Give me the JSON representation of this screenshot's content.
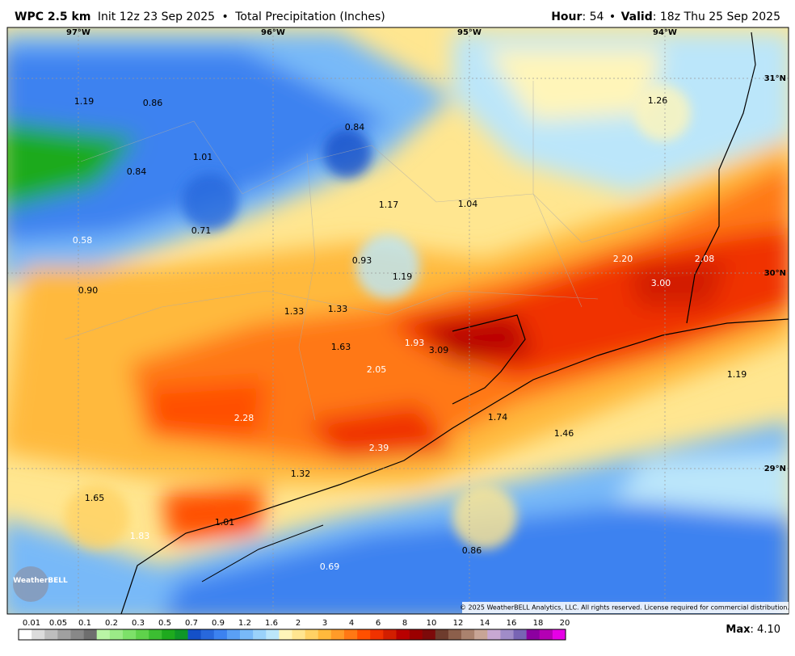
{
  "header": {
    "model": "WPC 2.5 km",
    "init": "Init 12z 23 Sep 2025",
    "separator": "•",
    "product": "Total Precipitation (Inches)",
    "hour_label": "Hour",
    "hour": ": 54",
    "valid_label": "Valid",
    "valid": ": 18z Thu 25 Sep 2025"
  },
  "map": {
    "longitudes": [
      "97°W",
      "96°W",
      "95°W",
      "94°W"
    ],
    "latitudes": [
      "31°N",
      "30°N",
      "29°N"
    ],
    "point_values": [
      "1.19",
      "0.86",
      "0.84",
      "1.26",
      "1.01",
      "0.84",
      "1.17",
      "1.04",
      "0.71",
      "0.58",
      "0.93",
      "2.20",
      "2.08",
      "3.00",
      "1.19",
      "0.90",
      "1.33",
      "1.33",
      "1.93",
      "3.09",
      "1.63",
      "2.05",
      "1.19",
      "2.28",
      "1.74",
      "1.46",
      "2.39",
      "1.32",
      "1.65",
      "1.01",
      "1.83",
      "0.86",
      "0.69"
    ],
    "logo": "WeatherBELL",
    "copyright": "© 2025 WeatherBELL Analytics, LLC. All rights reserved. License required for commercial distribution."
  },
  "legend": {
    "levels": [
      "0.01",
      "0.05",
      "0.1",
      "0.2",
      "0.3",
      "0.5",
      "0.7",
      "0.9",
      "1.2",
      "1.6",
      "2",
      "3",
      "4",
      "6",
      "8",
      "10",
      "12",
      "14",
      "16",
      "18",
      "20"
    ],
    "colors": [
      "#ffffff",
      "#dcdcdc",
      "#bebebe",
      "#a0a0a0",
      "#888888",
      "#6e6e6e",
      "#b9f5a5",
      "#9beb87",
      "#7de169",
      "#5fd24b",
      "#3cbe32",
      "#1eaa1e",
      "#0f9628",
      "#1450c8",
      "#2868dc",
      "#3c82f0",
      "#5aa0f5",
      "#78b9f8",
      "#9ad2fa",
      "#bbe6fa",
      "#fff5b9",
      "#ffe690",
      "#ffd264",
      "#ffb93c",
      "#ff9b28",
      "#ff7814",
      "#ff5000",
      "#f03200",
      "#d21e00",
      "#b90000",
      "#9b0000",
      "#7d0a0a",
      "#6e3c2d",
      "#8c5f4b",
      "#aa826e",
      "#c8a596",
      "#c8a8d2",
      "#a08cc8",
      "#7864b4",
      "#8c00a0",
      "#b400b4",
      "#e600e6"
    ],
    "max_label": "Max",
    "max_value": ": 4.10"
  }
}
